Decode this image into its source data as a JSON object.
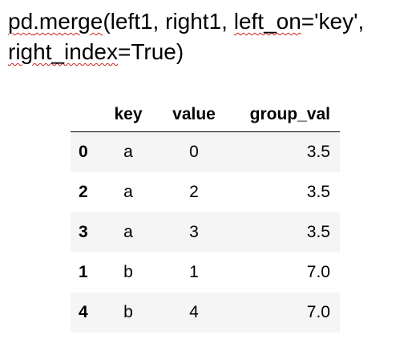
{
  "code": {
    "line1_plain_a": "",
    "line1_pd": "pd",
    "line1_merge": ".merge",
    "line1_rest_a": "(left1, right1, ",
    "line1_left_on": "left_on",
    "line1_rest_b": "='",
    "line1_key": "key",
    "line1_rest_c": "',",
    "line2_right_index": "right_index",
    "line2_rest": "=True)"
  },
  "table": {
    "headers": {
      "key": "key",
      "value": "value",
      "group_val": "group_val"
    },
    "rows": [
      {
        "index": "0",
        "key": "a",
        "value": "0",
        "group_val": "3.5"
      },
      {
        "index": "2",
        "key": "a",
        "value": "2",
        "group_val": "3.5"
      },
      {
        "index": "3",
        "key": "a",
        "value": "3",
        "group_val": "3.5"
      },
      {
        "index": "1",
        "key": "b",
        "value": "1",
        "group_val": "7.0"
      },
      {
        "index": "4",
        "key": "b",
        "value": "4",
        "group_val": "7.0"
      }
    ]
  },
  "colors": {
    "spellcheck_underline": "#d02020",
    "stripe": "#f5f5f5"
  }
}
